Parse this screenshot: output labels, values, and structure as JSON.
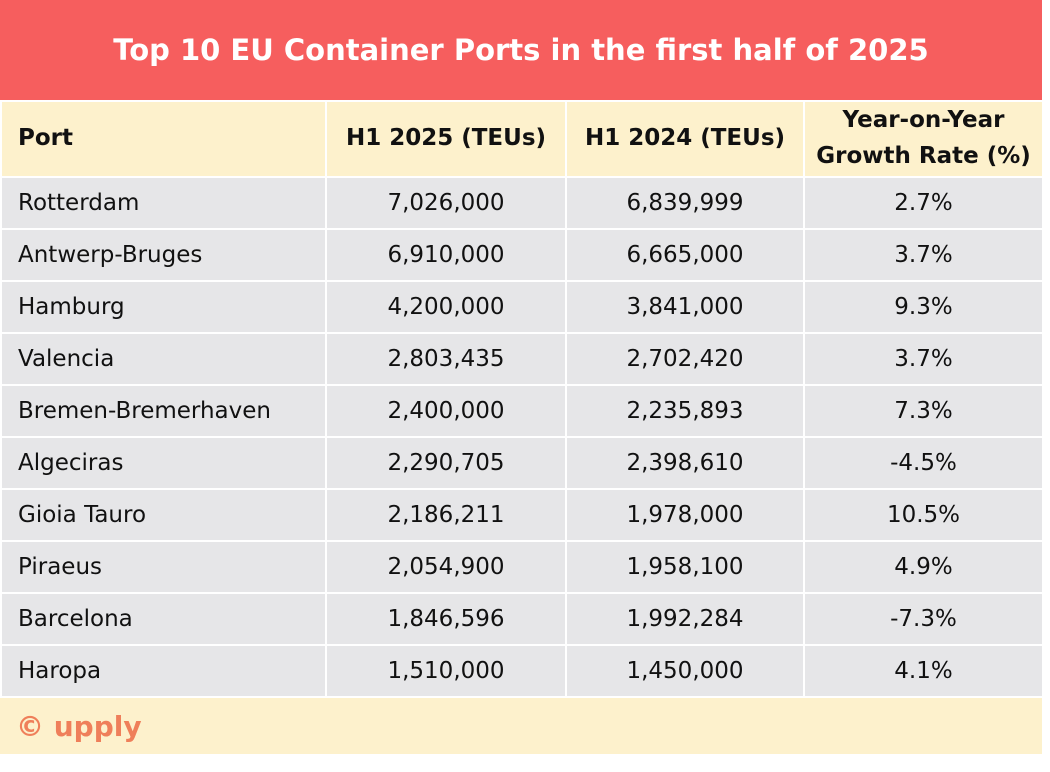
{
  "header": {
    "title": "Top 10 EU Container Ports in the first half of 2025"
  },
  "table": {
    "columns": [
      "Port",
      "H1 2025 (TEUs)",
      "H1 2024 (TEUs)",
      "Year-on-Year Growth Rate (%)"
    ],
    "rows": [
      [
        "Rotterdam",
        "7,026,000",
        "6,839,999",
        "2.7%"
      ],
      [
        "Antwerp-Bruges",
        "6,910,000",
        "6,665,000",
        "3.7%"
      ],
      [
        "Hamburg",
        "4,200,000",
        "3,841,000",
        "9.3%"
      ],
      [
        "Valencia",
        "2,803,435",
        "2,702,420",
        "3.7%"
      ],
      [
        "Bremen-Bremerhaven",
        "2,400,000",
        "2,235,893",
        "7.3%"
      ],
      [
        "Algeciras",
        "2,290,705",
        "2,398,610",
        "-4.5%"
      ],
      [
        "Gioia Tauro",
        "2,186,211",
        "1,978,000",
        "10.5%"
      ],
      [
        "Piraeus",
        "2,054,900",
        "1,958,100",
        "4.9%"
      ],
      [
        "Barcelona",
        "1,846,596",
        "1,992,284",
        "-7.3%"
      ],
      [
        "Haropa",
        "1,510,000",
        "1,450,000",
        "4.1%"
      ]
    ]
  },
  "footer": {
    "logo": "© upply"
  }
}
